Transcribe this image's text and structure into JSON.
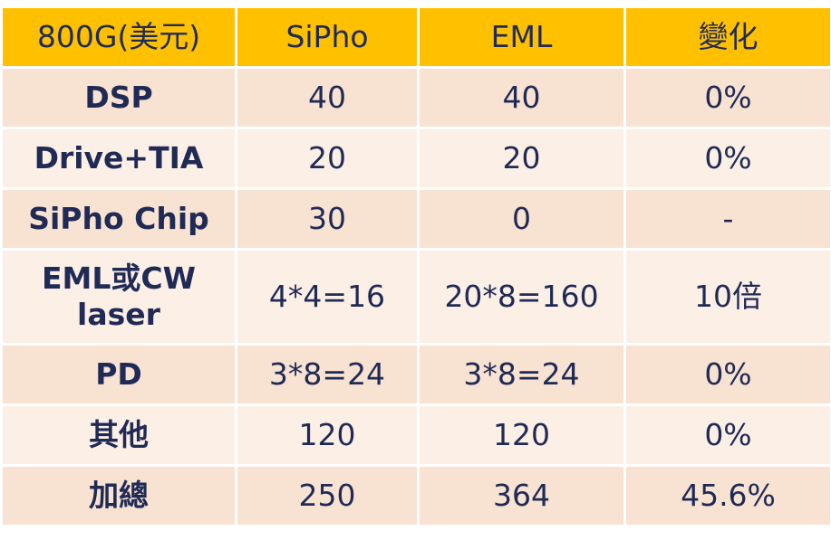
{
  "table": {
    "header": [
      "800G(美元)",
      "SiPho",
      "EML",
      "變化"
    ],
    "rows": [
      [
        "DSP",
        "40",
        "40",
        "0%"
      ],
      [
        "Drive+TIA",
        "20",
        "20",
        "0%"
      ],
      [
        "SiPho Chip",
        "30",
        "0",
        "-"
      ],
      [
        "EML或CW laser",
        "4*4=16",
        "20*8=160",
        "10倍"
      ],
      [
        "PD",
        "3*8=24",
        "3*8=24",
        "0%"
      ],
      [
        "其他",
        "120",
        "120",
        "0%"
      ],
      [
        "加總",
        "250",
        "364",
        "45.6%"
      ]
    ]
  }
}
